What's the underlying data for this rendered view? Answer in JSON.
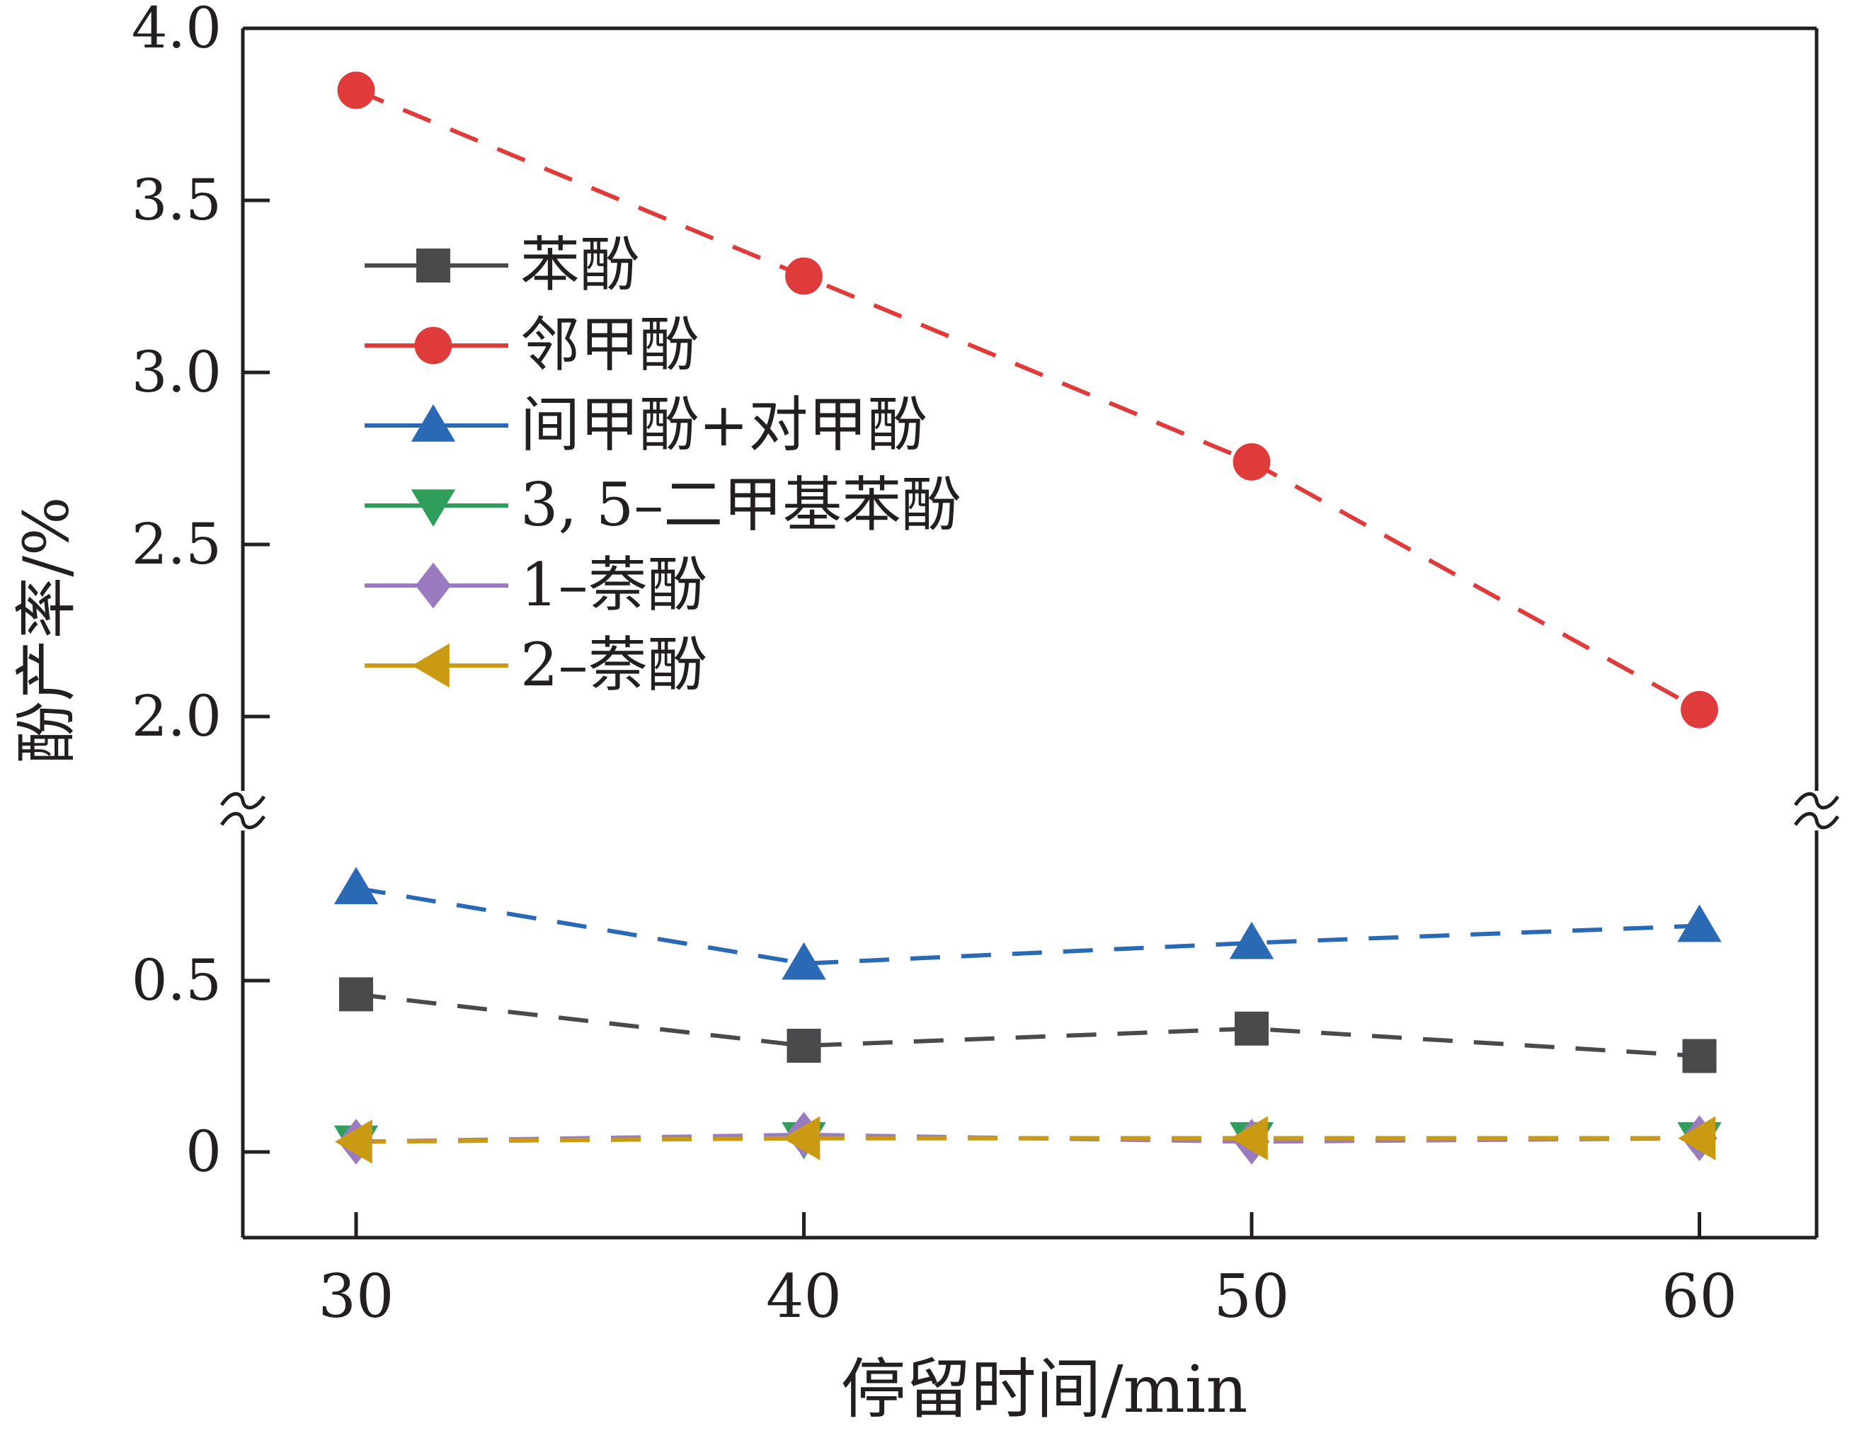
{
  "chart_data": {
    "type": "line",
    "xlabel": "停留时间/min",
    "ylabel": "酚产率/%",
    "x": [
      30,
      40,
      50,
      60
    ],
    "x_ticks": [
      "30",
      "40",
      "50",
      "60"
    ],
    "y_ticks_upper": [
      "4.0",
      "3.5",
      "3.0",
      "2.5",
      "2.0"
    ],
    "y_ticks_lower": [
      "0.5",
      "0"
    ],
    "y_axis_break": true,
    "legend_position": "upper-left",
    "grid": false,
    "series": [
      {
        "name": "苯酚",
        "values": [
          0.46,
          0.31,
          0.36,
          0.28
        ],
        "color": "#4a4a4c",
        "marker": "square"
      },
      {
        "name": "邻甲酚",
        "values": [
          3.82,
          3.28,
          2.74,
          2.02
        ],
        "color": "#e03b3b",
        "marker": "circle"
      },
      {
        "name": "间甲酚+对甲酚",
        "values": [
          0.77,
          0.55,
          0.61,
          0.66
        ],
        "color": "#2a6ab5",
        "marker": "triangle-up"
      },
      {
        "name": "3, 5–二甲基苯酚",
        "values": [
          0.03,
          0.04,
          0.04,
          0.04
        ],
        "color": "#2e9e5a",
        "marker": "triangle-down"
      },
      {
        "name": "1–萘酚",
        "values": [
          0.03,
          0.05,
          0.03,
          0.04
        ],
        "color": "#9b7bbf",
        "marker": "diamond"
      },
      {
        "name": "2–萘酚",
        "values": [
          0.03,
          0.04,
          0.04,
          0.04
        ],
        "color": "#c99a12",
        "marker": "triangle-left"
      }
    ]
  }
}
